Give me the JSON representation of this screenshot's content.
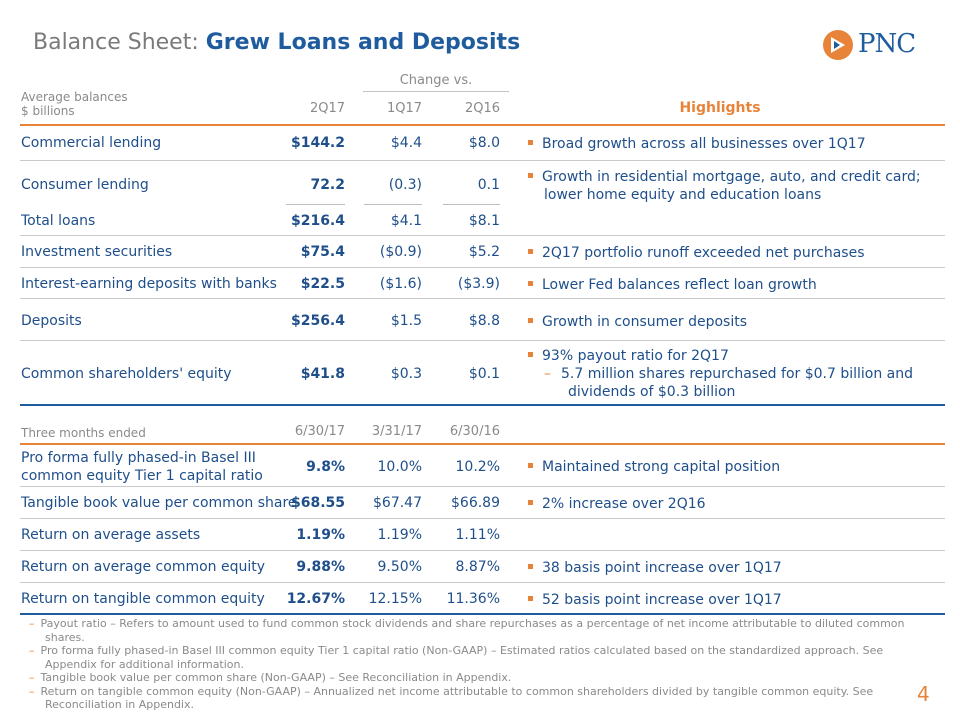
{
  "title": {
    "prefix": "Balance Sheet: ",
    "main": "Grew Loans and Deposits"
  },
  "logo": {
    "text": "PNC",
    "icon": "pnc-logo-icon",
    "color": "#e8843a"
  },
  "table1": {
    "header": {
      "row_label_1": "Average balances",
      "row_label_2": "$ billions",
      "col1": "2Q17",
      "change_vs": "Change vs.",
      "col2": "1Q17",
      "col3": "2Q16",
      "highlights": "Highlights"
    },
    "rows": [
      {
        "label": "Commercial lending",
        "v1": "$144.2",
        "v2": "$4.4",
        "v3": "$8.0",
        "highlight": "Broad growth across all businesses over 1Q17"
      },
      {
        "label": "Consumer lending",
        "v1": "72.2",
        "v2": "(0.3)",
        "v3": "0.1",
        "highlight": "Growth in residential mortgage, auto, and credit card; lower home equity and education loans"
      },
      {
        "label": "Total loans",
        "v1": "$216.4",
        "v2": "$4.1",
        "v3": "$8.1",
        "highlight": ""
      },
      {
        "label": "Investment securities",
        "v1": "$75.4",
        "v2": "($0.9)",
        "v3": "$5.2",
        "highlight": "2Q17 portfolio runoff exceeded net purchases"
      },
      {
        "label": "Interest-earning deposits with banks",
        "v1": "$22.5",
        "v2": "($1.6)",
        "v3": "($3.9)",
        "highlight": "Lower Fed balances reflect loan growth"
      },
      {
        "label": "Deposits",
        "v1": "$256.4",
        "v2": "$1.5",
        "v3": "$8.8",
        "highlight": "Growth in consumer deposits"
      },
      {
        "label": "Common shareholders' equity",
        "v1": "$41.8",
        "v2": "$0.3",
        "v3": "$0.1",
        "highlight": "93% payout ratio for 2Q17",
        "sub_highlight": "5.7 million shares repurchased for $0.7 billion and dividends of $0.3 billion"
      }
    ]
  },
  "table2": {
    "header": {
      "row_label": "Three months ended",
      "col1": "6/30/17",
      "col2": "3/31/17",
      "col3": "6/30/16"
    },
    "rows": [
      {
        "label_1": "Pro forma fully phased-in Basel III",
        "label_2": "common equity Tier 1 capital ratio",
        "v1": "9.8%",
        "v2": "10.0%",
        "v3": "10.2%",
        "highlight": "Maintained strong capital position"
      },
      {
        "label": "Tangible book value per common share",
        "v1": "$68.55",
        "v2": "$67.47",
        "v3": "$66.89",
        "highlight": "2% increase over 2Q16"
      },
      {
        "label": "Return on average assets",
        "v1": "1.19%",
        "v2": "1.19%",
        "v3": "1.11%",
        "highlight": ""
      },
      {
        "label": "Return on average common equity",
        "v1": "9.88%",
        "v2": "9.50%",
        "v3": "8.87%",
        "highlight": "38 basis point increase over 1Q17"
      },
      {
        "label": "Return on tangible common equity",
        "v1": "12.67%",
        "v2": "12.15%",
        "v3": "11.36%",
        "highlight": "52 basis point increase over 1Q17"
      }
    ]
  },
  "footnotes": [
    "Payout ratio – Refers to amount used to fund common stock dividends and share repurchases as a percentage of net income attributable to diluted common shares.",
    "Pro forma fully phased-in Basel III common equity Tier 1 capital ratio (Non-GAAP) – Estimated ratios calculated based on the standardized approach. See Appendix for additional information.",
    "Tangible book value per common share (Non-GAAP) – See Reconciliation in Appendix.",
    "Return on tangible common equity (Non-GAAP) – Annualized net income attributable to common shareholders divided by tangible common equity.  See Reconciliation in Appendix."
  ],
  "page_number": "4",
  "colors": {
    "accent": "#e8843a",
    "brand": "#1f5c9e",
    "text": "#1f4f8a",
    "muted": "#8a8a8a"
  }
}
